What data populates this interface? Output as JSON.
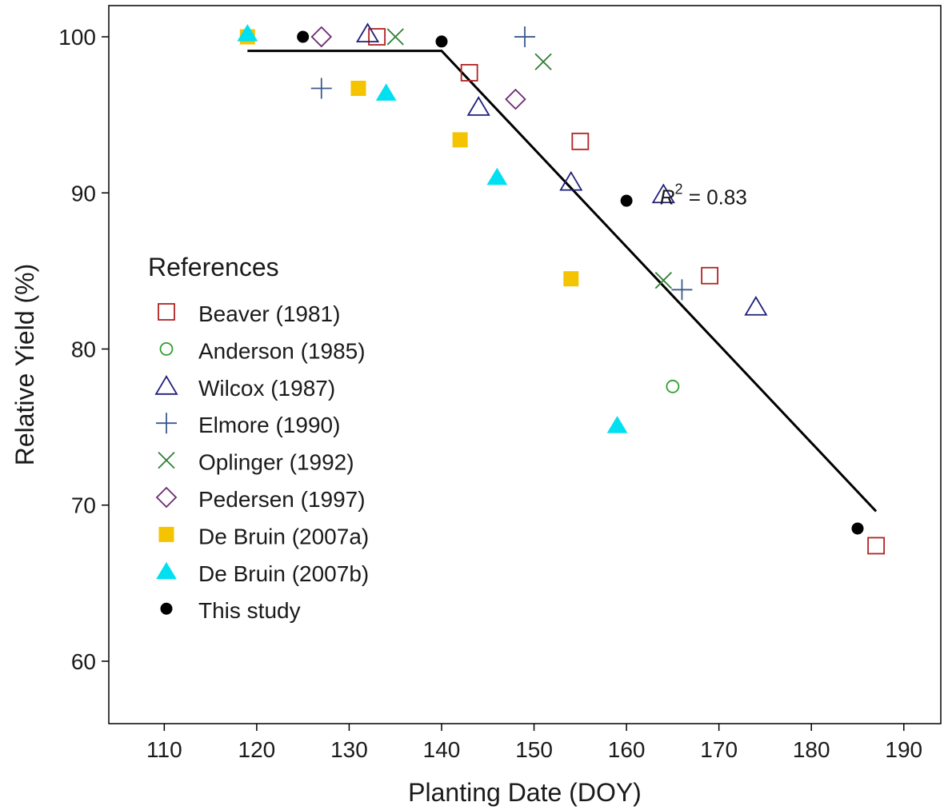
{
  "chart_data": {
    "type": "scatter",
    "xlabel": "Planting Date (DOY)",
    "ylabel": "Relative Yield (%)",
    "xlim": [
      104,
      194
    ],
    "ylim": [
      56,
      102
    ],
    "xticks": [
      110,
      120,
      130,
      140,
      150,
      160,
      170,
      180,
      190
    ],
    "yticks": [
      60,
      70,
      80,
      90,
      100
    ],
    "grid": false,
    "legend": {
      "title": "References",
      "placement": "left-middle"
    },
    "annotation": {
      "base": "R",
      "superscript": "2",
      "rest": " = 0.83",
      "x": 163,
      "y": 90.5
    },
    "fit_line": {
      "name": "",
      "points": [
        [
          119,
          99.1
        ],
        [
          140,
          99.1
        ],
        [
          187,
          69.6
        ]
      ],
      "color": "#000000"
    },
    "series": [
      {
        "name": "Beaver (1981)",
        "marker": "open-square",
        "color": "#b22222",
        "points": [
          [
            133,
            100
          ],
          [
            143,
            97.7
          ],
          [
            155,
            93.3
          ],
          [
            169,
            84.7
          ],
          [
            187,
            67.4
          ]
        ]
      },
      {
        "name": "Anderson (1985)",
        "marker": "open-circle",
        "color": "#2e9e2e",
        "points": [
          [
            165,
            77.6
          ]
        ]
      },
      {
        "name": "Wilcox (1987)",
        "marker": "open-triangle",
        "color": "#1f1f7a",
        "points": [
          [
            132,
            100.2
          ],
          [
            144,
            95.5
          ],
          [
            154,
            90.7
          ],
          [
            164,
            89.9
          ],
          [
            174,
            82.7
          ]
        ]
      },
      {
        "name": "Elmore (1990)",
        "marker": "plus",
        "color": "#3a5a8c",
        "points": [
          [
            127,
            96.7
          ],
          [
            149,
            100
          ],
          [
            166,
            83.8
          ]
        ]
      },
      {
        "name": "Oplinger (1992)",
        "marker": "cross",
        "color": "#2e7d32",
        "points": [
          [
            135,
            100
          ],
          [
            151,
            98.4
          ],
          [
            164,
            84.4
          ]
        ]
      },
      {
        "name": "Pedersen (1997)",
        "marker": "open-diamond",
        "color": "#6a2c70",
        "points": [
          [
            127,
            100
          ],
          [
            148,
            96
          ]
        ]
      },
      {
        "name": "De Bruin (2007a)",
        "marker": "filled-square",
        "color": "#f5c400",
        "points": [
          [
            119,
            100
          ],
          [
            131,
            96.7
          ],
          [
            142,
            93.4
          ],
          [
            154,
            84.5
          ]
        ]
      },
      {
        "name": "De Bruin (2007b)",
        "marker": "filled-triangle",
        "color": "#00e0f0",
        "points": [
          [
            119,
            100.2
          ],
          [
            134,
            96.4
          ],
          [
            146,
            91
          ],
          [
            159,
            75.1
          ]
        ]
      },
      {
        "name": "This study",
        "marker": "filled-circle",
        "color": "#000000",
        "points": [
          [
            125,
            100
          ],
          [
            140,
            99.7
          ],
          [
            160,
            89.5
          ],
          [
            185,
            68.5
          ]
        ]
      }
    ]
  }
}
